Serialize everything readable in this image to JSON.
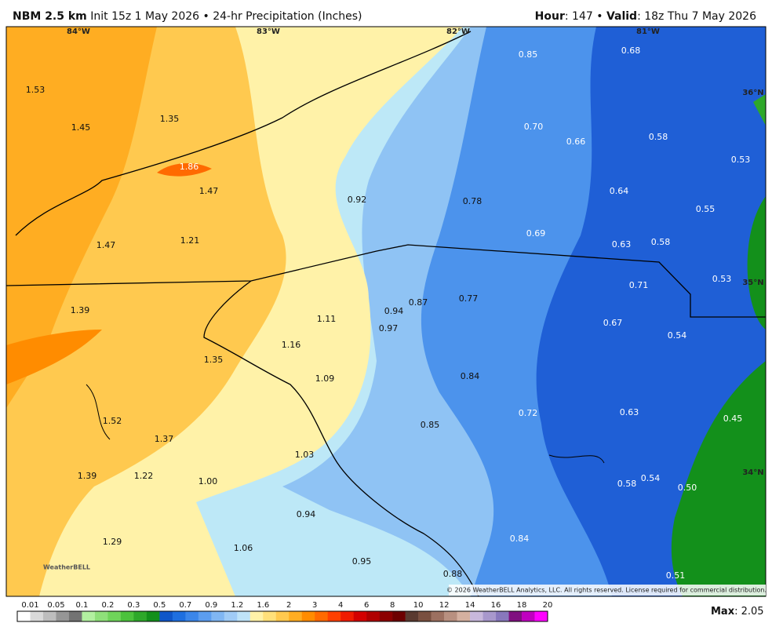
{
  "header": {
    "model": "NBM 2.5 km",
    "run": "Init 15z 1 May 2026 • 24-hr Precipitation (Inches)",
    "hour_label": "Hour",
    "hour": ": 147 •",
    "valid_label": "Valid",
    "valid": ": 18z Thu 7 May 2026"
  },
  "map": {
    "longitudes": [
      "84°W",
      "83°W",
      "82°W",
      "81°W"
    ],
    "latitudes": [
      "36°N",
      "35°N",
      "34°N"
    ],
    "values": [
      "0.85",
      "0.68",
      "1.53",
      "1.35",
      "0.70",
      "0.66",
      "0.58",
      "1.45",
      "0.53",
      "1.86",
      "1.47",
      "0.64",
      "0.92",
      "0.78",
      "0.55",
      "1.21",
      "0.69",
      "1.47",
      "0.63",
      "0.58",
      "0.53",
      "0.71",
      "0.87",
      "0.77",
      "1.39",
      "0.94",
      "1.11",
      "0.67",
      "0.97",
      "1.16",
      "0.54",
      "1.35",
      "1.09",
      "0.84",
      "0.63",
      "0.72",
      "0.45",
      "1.52",
      "0.85",
      "1.37",
      "1.03",
      "1.39",
      "1.22",
      "1.00",
      "0.58",
      "0.54",
      "0.50",
      "0.94",
      "0.84",
      "1.29",
      "1.06",
      "0.95",
      "0.88",
      "0.51"
    ],
    "copyright": "© 2026 WeatherBELL Analytics, LLC. All rights reserved. License required for commercial distribution.",
    "logo": "WeatherBELL"
  },
  "colorbar": {
    "labels": [
      "0.01",
      "0.05",
      "0.1",
      "0.2",
      "0.3",
      "0.5",
      "0.7",
      "0.9",
      "1.2",
      "1.6",
      "2",
      "3",
      "4",
      "6",
      "8",
      "10",
      "12",
      "14",
      "16",
      "18",
      "20"
    ],
    "colors": [
      "#ffffff",
      "#d9d9d9",
      "#bdbdbd",
      "#969696",
      "#737373",
      "#b2f0a0",
      "#8fe07a",
      "#6fd45a",
      "#4cc23c",
      "#2ea82a",
      "#13901b",
      "#0f56c9",
      "#1e6fe0",
      "#3b86ea",
      "#5c9def",
      "#80b6f3",
      "#a0cbf6",
      "#bfe3f8",
      "#fff2a8",
      "#ffe07a",
      "#ffc94f",
      "#ffad22",
      "#ff8c00",
      "#ff6a00",
      "#ff4000",
      "#f01c00",
      "#d40000",
      "#b00000",
      "#8c0000",
      "#6d0000",
      "#5a3a30",
      "#7a5040",
      "#9c7060",
      "#b89080",
      "#d4b0a0",
      "#c8b8dc",
      "#a898cc",
      "#8878bc",
      "#801080",
      "#c000c0",
      "#ff00ff"
    ]
  },
  "footer": {
    "max_label": "Max",
    "max": ": 2.05"
  }
}
